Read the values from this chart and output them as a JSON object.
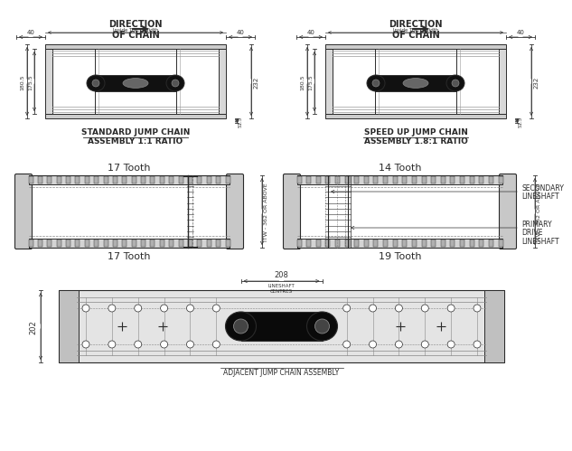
{
  "bg_color": "#ffffff",
  "lc": "#2a2a2a",
  "dc": "#333333",
  "fc_light": "#e8e8e8",
  "fc_mid": "#d0d0d0",
  "fc_dark": "#111111",
  "fc_chain": "#1a1a1a",
  "title1": "DIRECTION\nOF CHAIN",
  "title2": "DIRECTION\nOF CHAIN",
  "label1a": "STANDARD JUMP CHAIN",
  "label1b": "ASSEMBLY 1:1 RATIO",
  "label2a": "SPEED UP JUMP CHAIN",
  "label2b": "ASSEMBLY 1.8:1 RATIO",
  "tooth_tl": "17 Tooth",
  "tooth_bl": "17 Tooth",
  "tooth_tr": "14 Tooth",
  "tooth_br": "19 Tooth",
  "lbl_sec": "SECONDARY\nLINESHAFT",
  "lbl_pri": "PRIMARY\nDRIVE\nLINESHAFT",
  "itw": "ITW - 362 OR ABOVE",
  "d40": "40",
  "d_inside": "Inside Track Width",
  "d180": "180.5",
  "d175": "175.5",
  "d232": "232",
  "d51": "51.5",
  "d208": "208",
  "d_ls": "LINESHAFT\nCENTRES",
  "d202": "202",
  "lbl_adj": "ADJACENT JUMP CHAIN ASSEMBLY"
}
